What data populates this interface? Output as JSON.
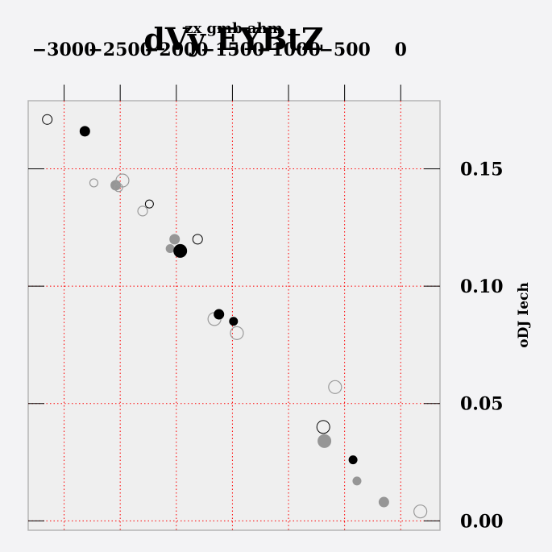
{
  "chart_data": {
    "type": "scatter",
    "title": "dVy EYBtZ",
    "xlabel": "zx gmb ahm",
    "ylabel": "oDJ Iech",
    "x_axis_position": "top",
    "y_axis_position": "right",
    "xlim": [
      -3320,
      350
    ],
    "ylim": [
      -0.004,
      0.179
    ],
    "grid": true,
    "grid_color": "#ff0000",
    "plot_background": "#efefef",
    "xticks": [
      -3000,
      -2500,
      -2000,
      -1500,
      -1000,
      -500,
      0
    ],
    "xtick_labels": [
      "−3000",
      "−2500",
      "−2000",
      "−1500",
      "−1000",
      "−500",
      "0"
    ],
    "yticks": [
      0.0,
      0.05,
      0.1,
      0.15
    ],
    "ytick_labels": [
      "0.00",
      "0.05",
      "0.10",
      "0.15"
    ],
    "points": [
      {
        "x": -3150,
        "y": 0.171,
        "size": 6,
        "style": "hollow-black"
      },
      {
        "x": -2815,
        "y": 0.166,
        "size": 6,
        "style": "black"
      },
      {
        "x": -2735,
        "y": 0.144,
        "size": 5,
        "style": "hollow-gray"
      },
      {
        "x": -2540,
        "y": 0.143,
        "size": 6,
        "style": "gray"
      },
      {
        "x": -2515,
        "y": 0.142,
        "size": 5,
        "style": "hollow-gray"
      },
      {
        "x": -2480,
        "y": 0.145,
        "size": 8,
        "style": "hollow-gray"
      },
      {
        "x": -2300,
        "y": 0.132,
        "size": 6,
        "style": "hollow-gray"
      },
      {
        "x": -2240,
        "y": 0.135,
        "size": 5,
        "style": "hollow-black"
      },
      {
        "x": -2015,
        "y": 0.12,
        "size": 6,
        "style": "gray"
      },
      {
        "x": -2055,
        "y": 0.116,
        "size": 5,
        "style": "gray"
      },
      {
        "x": -1965,
        "y": 0.115,
        "size": 8,
        "style": "black"
      },
      {
        "x": -1810,
        "y": 0.12,
        "size": 6,
        "style": "hollow-black"
      },
      {
        "x": -1660,
        "y": 0.086,
        "size": 8,
        "style": "hollow-gray"
      },
      {
        "x": -1620,
        "y": 0.088,
        "size": 6,
        "style": "black"
      },
      {
        "x": -1490,
        "y": 0.085,
        "size": 5,
        "style": "black"
      },
      {
        "x": -1460,
        "y": 0.08,
        "size": 8,
        "style": "hollow-gray"
      },
      {
        "x": -585,
        "y": 0.057,
        "size": 8,
        "style": "hollow-gray"
      },
      {
        "x": -690,
        "y": 0.04,
        "size": 8,
        "style": "hollow-black"
      },
      {
        "x": -680,
        "y": 0.034,
        "size": 8,
        "style": "gray"
      },
      {
        "x": -425,
        "y": 0.026,
        "size": 5,
        "style": "black"
      },
      {
        "x": -390,
        "y": 0.017,
        "size": 5,
        "style": "gray"
      },
      {
        "x": -150,
        "y": 0.008,
        "size": 6,
        "style": "gray"
      },
      {
        "x": 175,
        "y": 0.004,
        "size": 8,
        "style": "hollow-gray"
      }
    ]
  }
}
